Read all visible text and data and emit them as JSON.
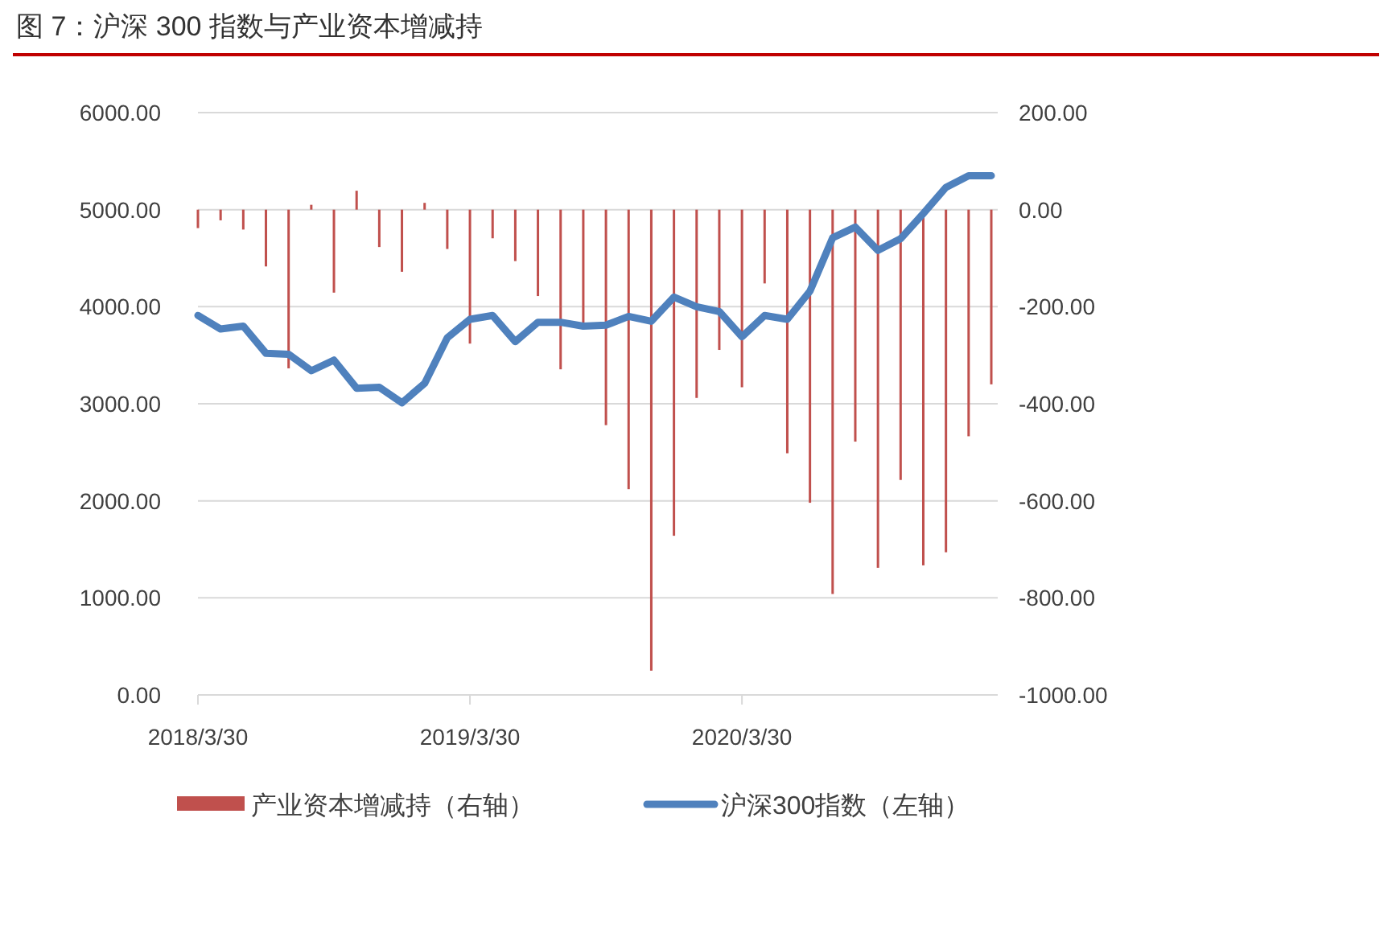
{
  "chart_data": {
    "type": "bar",
    "title": "图 7：沪深 300 指数与产业资本增减持",
    "categories": [
      "2018/3/30",
      null,
      null,
      null,
      null,
      null,
      null,
      null,
      null,
      null,
      null,
      null,
      "2019/3/30",
      null,
      null,
      null,
      null,
      null,
      null,
      null,
      null,
      null,
      null,
      null,
      "2020/3/30",
      null,
      null,
      null,
      null,
      null,
      null,
      null,
      null,
      null,
      null,
      null
    ],
    "series": [
      {
        "name": "产业资本增减持（右轴）",
        "axis": "y2",
        "color": "#c0504d",
        "values": [
          -38,
          -22,
          -41,
          -117,
          -327,
          10,
          -171,
          39,
          -77,
          -128,
          14,
          -81,
          -276,
          -59,
          -106,
          -178,
          -329,
          -233,
          -444,
          -576,
          -950,
          -672,
          -388,
          -289,
          -366,
          -152,
          -502,
          -604,
          -792,
          -478,
          -738,
          -557,
          -733,
          -706,
          -467,
          -360
        ]
      },
      {
        "name": "沪深300指数（左轴）",
        "type": "line",
        "axis": "y",
        "color": "#4f81bd",
        "values": [
          3910,
          3770,
          3800,
          3520,
          3510,
          3340,
          3450,
          3160,
          3170,
          3010,
          3210,
          3680,
          3870,
          3910,
          3640,
          3840,
          3840,
          3800,
          3810,
          3900,
          3850,
          4100,
          4000,
          3950,
          3690,
          3910,
          3870,
          4160,
          4710,
          4820,
          4580,
          4700,
          4960,
          5230,
          5350,
          5350
        ]
      }
    ],
    "ylim": [
      0,
      6000
    ],
    "yticks": [
      {
        "value": 0,
        "label": "0.00"
      },
      {
        "value": 1000,
        "label": "1000.00"
      },
      {
        "value": 2000,
        "label": "2000.00"
      },
      {
        "value": 3000,
        "label": "3000.00"
      },
      {
        "value": 4000,
        "label": "4000.00"
      },
      {
        "value": 5000,
        "label": "5000.00"
      },
      {
        "value": 6000,
        "label": "6000.00"
      }
    ],
    "y2lim": [
      -1000,
      200
    ],
    "y2ticks": [
      {
        "value": -1000,
        "label": "-1000.00"
      },
      {
        "value": -800,
        "label": "-800.00"
      },
      {
        "value": -600,
        "label": "-600.00"
      },
      {
        "value": -400,
        "label": "-400.00"
      },
      {
        "value": -200,
        "label": "-200.00"
      },
      {
        "value": 0,
        "label": "0.00"
      },
      {
        "value": 200,
        "label": "200.00"
      }
    ],
    "grid": "y",
    "legend": "bottom"
  }
}
